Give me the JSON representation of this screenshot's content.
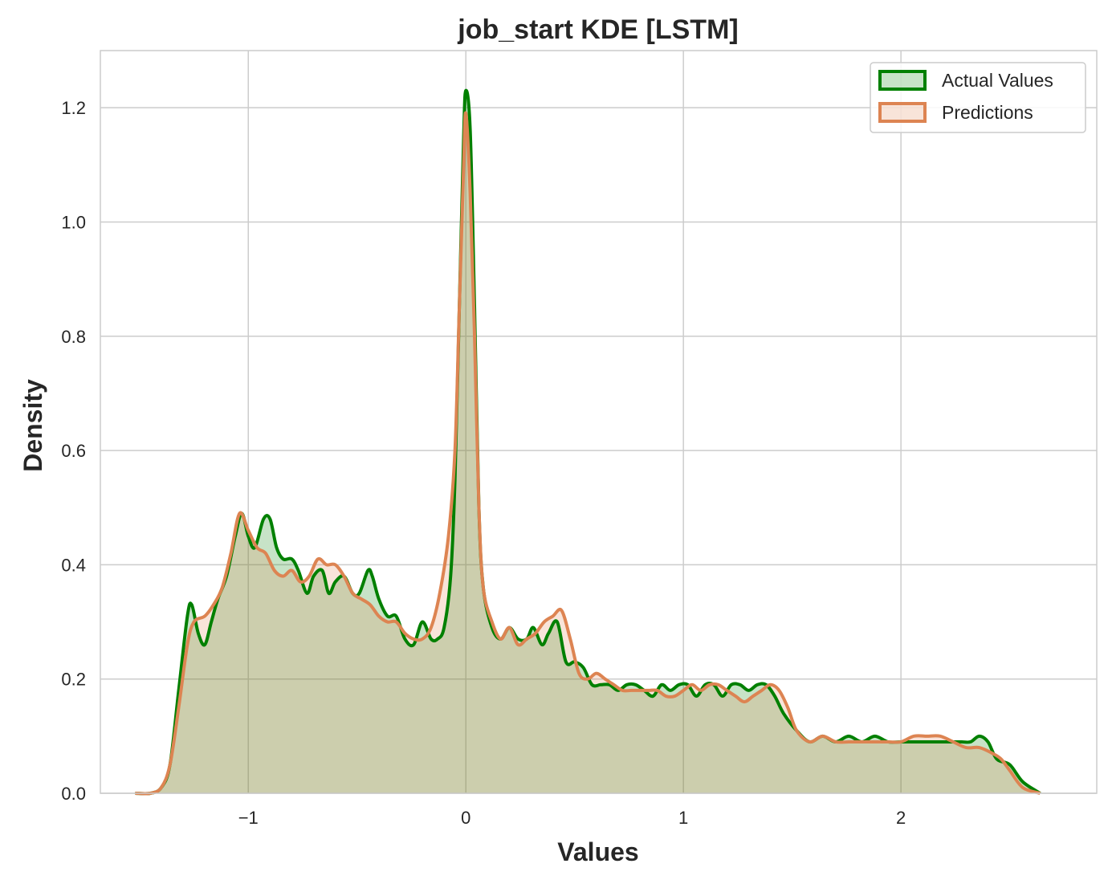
{
  "chart_data": {
    "type": "area",
    "title": "job_start KDE [LSTM]",
    "xlabel": "Values",
    "ylabel": "Density",
    "xlim": [
      -1.68,
      2.9
    ],
    "ylim": [
      0.0,
      1.3
    ],
    "xticks": [
      -1,
      0,
      1,
      2
    ],
    "xtick_labels": [
      "−1",
      "0",
      "1",
      "2"
    ],
    "yticks": [
      0.0,
      0.2,
      0.4,
      0.6,
      0.8,
      1.0,
      1.2
    ],
    "ytick_labels": [
      "0.0",
      "0.2",
      "0.4",
      "0.6",
      "0.8",
      "1.0",
      "1.2"
    ],
    "grid": true,
    "legend_position": "top-right",
    "series": [
      {
        "name": "Actual Values",
        "color": "#008000",
        "fill": "rgba(0,128,0,0.22)",
        "x": [
          -1.52,
          -1.45,
          -1.4,
          -1.36,
          -1.32,
          -1.28,
          -1.26,
          -1.23,
          -1.2,
          -1.17,
          -1.14,
          -1.1,
          -1.06,
          -1.03,
          -1.0,
          -0.97,
          -0.93,
          -0.9,
          -0.87,
          -0.84,
          -0.8,
          -0.77,
          -0.73,
          -0.7,
          -0.66,
          -0.63,
          -0.6,
          -0.56,
          -0.52,
          -0.49,
          -0.45,
          -0.43,
          -0.4,
          -0.36,
          -0.32,
          -0.28,
          -0.24,
          -0.2,
          -0.16,
          -0.13,
          -0.1,
          -0.07,
          -0.05,
          -0.03,
          -0.01,
          0.0,
          0.02,
          0.04,
          0.06,
          0.08,
          0.12,
          0.16,
          0.2,
          0.24,
          0.28,
          0.31,
          0.35,
          0.38,
          0.42,
          0.46,
          0.5,
          0.54,
          0.58,
          0.62,
          0.66,
          0.7,
          0.74,
          0.78,
          0.82,
          0.86,
          0.9,
          0.94,
          0.98,
          1.02,
          1.06,
          1.1,
          1.14,
          1.18,
          1.22,
          1.26,
          1.3,
          1.34,
          1.38,
          1.42,
          1.46,
          1.52,
          1.58,
          1.64,
          1.7,
          1.76,
          1.82,
          1.88,
          1.94,
          2.0,
          2.06,
          2.12,
          2.18,
          2.24,
          2.28,
          2.32,
          2.36,
          2.4,
          2.44,
          2.5,
          2.56,
          2.64
        ],
        "values": [
          0.0,
          0.0,
          0.01,
          0.05,
          0.18,
          0.31,
          0.33,
          0.28,
          0.26,
          0.3,
          0.34,
          0.38,
          0.45,
          0.49,
          0.45,
          0.43,
          0.48,
          0.48,
          0.43,
          0.41,
          0.41,
          0.39,
          0.35,
          0.38,
          0.39,
          0.35,
          0.37,
          0.38,
          0.35,
          0.35,
          0.39,
          0.38,
          0.34,
          0.31,
          0.31,
          0.27,
          0.26,
          0.3,
          0.27,
          0.27,
          0.29,
          0.38,
          0.55,
          0.85,
          1.15,
          1.23,
          1.16,
          0.85,
          0.5,
          0.36,
          0.29,
          0.27,
          0.29,
          0.27,
          0.27,
          0.29,
          0.26,
          0.28,
          0.3,
          0.23,
          0.23,
          0.22,
          0.19,
          0.19,
          0.19,
          0.18,
          0.19,
          0.19,
          0.18,
          0.17,
          0.19,
          0.18,
          0.19,
          0.19,
          0.17,
          0.19,
          0.19,
          0.17,
          0.19,
          0.19,
          0.18,
          0.19,
          0.19,
          0.17,
          0.14,
          0.11,
          0.09,
          0.1,
          0.09,
          0.1,
          0.09,
          0.1,
          0.09,
          0.09,
          0.09,
          0.09,
          0.09,
          0.09,
          0.09,
          0.09,
          0.1,
          0.09,
          0.06,
          0.05,
          0.02,
          0.0
        ]
      },
      {
        "name": "Predictions",
        "color": "#dd8452",
        "fill": "rgba(221,132,82,0.22)",
        "x": [
          -1.52,
          -1.45,
          -1.4,
          -1.36,
          -1.32,
          -1.28,
          -1.25,
          -1.2,
          -1.16,
          -1.12,
          -1.08,
          -1.04,
          -1.0,
          -0.96,
          -0.92,
          -0.88,
          -0.84,
          -0.8,
          -0.76,
          -0.72,
          -0.68,
          -0.64,
          -0.6,
          -0.56,
          -0.52,
          -0.48,
          -0.44,
          -0.4,
          -0.36,
          -0.32,
          -0.28,
          -0.24,
          -0.2,
          -0.16,
          -0.12,
          -0.08,
          -0.05,
          -0.03,
          -0.01,
          0.0,
          0.02,
          0.04,
          0.06,
          0.08,
          0.12,
          0.16,
          0.2,
          0.24,
          0.28,
          0.32,
          0.36,
          0.4,
          0.44,
          0.48,
          0.52,
          0.56,
          0.6,
          0.64,
          0.68,
          0.72,
          0.76,
          0.8,
          0.84,
          0.88,
          0.92,
          0.96,
          1.0,
          1.04,
          1.08,
          1.12,
          1.16,
          1.2,
          1.24,
          1.28,
          1.32,
          1.36,
          1.4,
          1.44,
          1.48,
          1.52,
          1.58,
          1.64,
          1.7,
          1.76,
          1.82,
          1.88,
          1.94,
          2.0,
          2.06,
          2.12,
          2.18,
          2.24,
          2.3,
          2.36,
          2.42,
          2.46,
          2.5,
          2.56,
          2.64
        ],
        "values": [
          0.0,
          0.0,
          0.01,
          0.05,
          0.15,
          0.26,
          0.3,
          0.31,
          0.33,
          0.36,
          0.42,
          0.49,
          0.46,
          0.43,
          0.42,
          0.39,
          0.38,
          0.39,
          0.37,
          0.38,
          0.41,
          0.4,
          0.4,
          0.38,
          0.35,
          0.34,
          0.33,
          0.31,
          0.3,
          0.3,
          0.28,
          0.27,
          0.27,
          0.29,
          0.35,
          0.45,
          0.6,
          0.85,
          1.1,
          1.19,
          1.05,
          0.8,
          0.5,
          0.36,
          0.3,
          0.27,
          0.29,
          0.26,
          0.27,
          0.28,
          0.3,
          0.31,
          0.32,
          0.27,
          0.21,
          0.2,
          0.21,
          0.2,
          0.19,
          0.18,
          0.18,
          0.18,
          0.18,
          0.18,
          0.17,
          0.17,
          0.18,
          0.19,
          0.18,
          0.19,
          0.19,
          0.18,
          0.17,
          0.16,
          0.17,
          0.18,
          0.19,
          0.18,
          0.15,
          0.11,
          0.09,
          0.1,
          0.09,
          0.09,
          0.09,
          0.09,
          0.09,
          0.09,
          0.1,
          0.1,
          0.1,
          0.09,
          0.08,
          0.08,
          0.07,
          0.06,
          0.04,
          0.01,
          0.0
        ]
      }
    ]
  },
  "colors": {
    "grid": "#cccccc",
    "axes_frame": "#cccccc",
    "text": "#262626"
  }
}
